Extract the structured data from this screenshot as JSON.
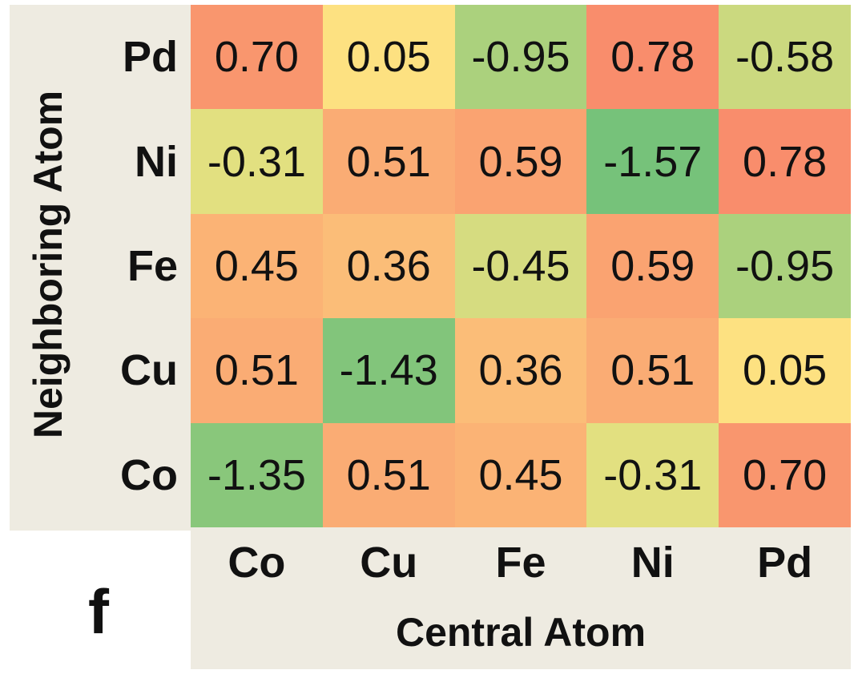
{
  "chart_data": {
    "type": "heatmap",
    "panel_label": "f",
    "xlabel": "Central Atom",
    "ylabel": "Neighboring Atom",
    "x_categories": [
      "Co",
      "Cu",
      "Fe",
      "Ni",
      "Pd"
    ],
    "y_categories": [
      "Pd",
      "Ni",
      "Fe",
      "Cu",
      "Co"
    ],
    "values": [
      [
        "0.70",
        "0.05",
        "-0.95",
        "0.78",
        "-0.58"
      ],
      [
        "-0.31",
        "0.51",
        "0.59",
        "-1.57",
        "0.78"
      ],
      [
        "0.45",
        "0.36",
        "-0.45",
        "0.59",
        "-0.95"
      ],
      [
        "0.51",
        "-1.43",
        "0.36",
        "0.51",
        "0.05"
      ],
      [
        "-1.35",
        "0.51",
        "0.45",
        "-0.31",
        "0.70"
      ]
    ],
    "colormap": {
      "low": "#76c27a",
      "mid": "#fde782",
      "high": "#f98d6c"
    },
    "value_range": [
      -1.57,
      0.78
    ]
  }
}
